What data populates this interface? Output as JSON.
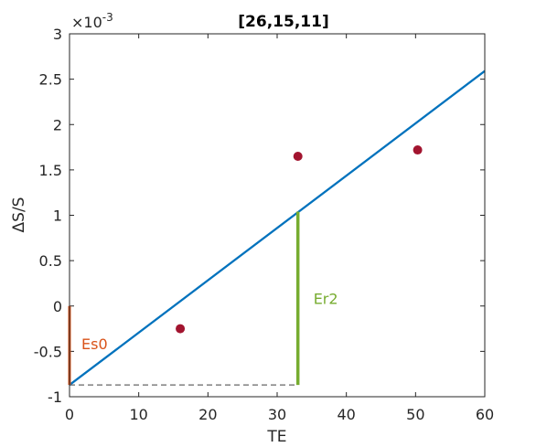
{
  "chart_data": {
    "type": "scatter",
    "title": "[26,15,11]",
    "xlabel": "TE",
    "ylabel": "ΔS/S",
    "y_exponent_label": "×10",
    "y_exponent_power": "-3",
    "xlim": [
      0,
      60
    ],
    "ylim": [
      -1,
      3
    ],
    "x_ticks": [
      0,
      10,
      20,
      30,
      40,
      50,
      60
    ],
    "x_tick_labels": [
      "0",
      "10",
      "20",
      "30",
      "40",
      "50",
      "60"
    ],
    "y_ticks": [
      -1,
      -0.5,
      0,
      0.5,
      1,
      1.5,
      2,
      2.5,
      3
    ],
    "y_tick_labels": [
      "-1",
      "-0.5",
      "0",
      "0.5",
      "1",
      "1.5",
      "2",
      "2.5",
      "3"
    ],
    "grid": false,
    "points": {
      "x": [
        16,
        33,
        50.3
      ],
      "y": [
        -0.25,
        1.65,
        1.72
      ],
      "color": "#a2142f"
    },
    "fit_line": {
      "x": [
        0,
        60
      ],
      "y": [
        -0.87,
        2.59
      ],
      "color": "#0072bd"
    },
    "es0": {
      "label": "Es0",
      "x": 0,
      "y_from": -0.87,
      "y_to": 0,
      "color": "#d95319"
    },
    "er2": {
      "label": "Er2",
      "x": 33,
      "y_from": -0.87,
      "y_to": 1.04,
      "color": "#77ac30"
    },
    "dashed_baseline": {
      "x_from": 0,
      "x_to": 33,
      "y": -0.87,
      "color": "#666666"
    }
  }
}
